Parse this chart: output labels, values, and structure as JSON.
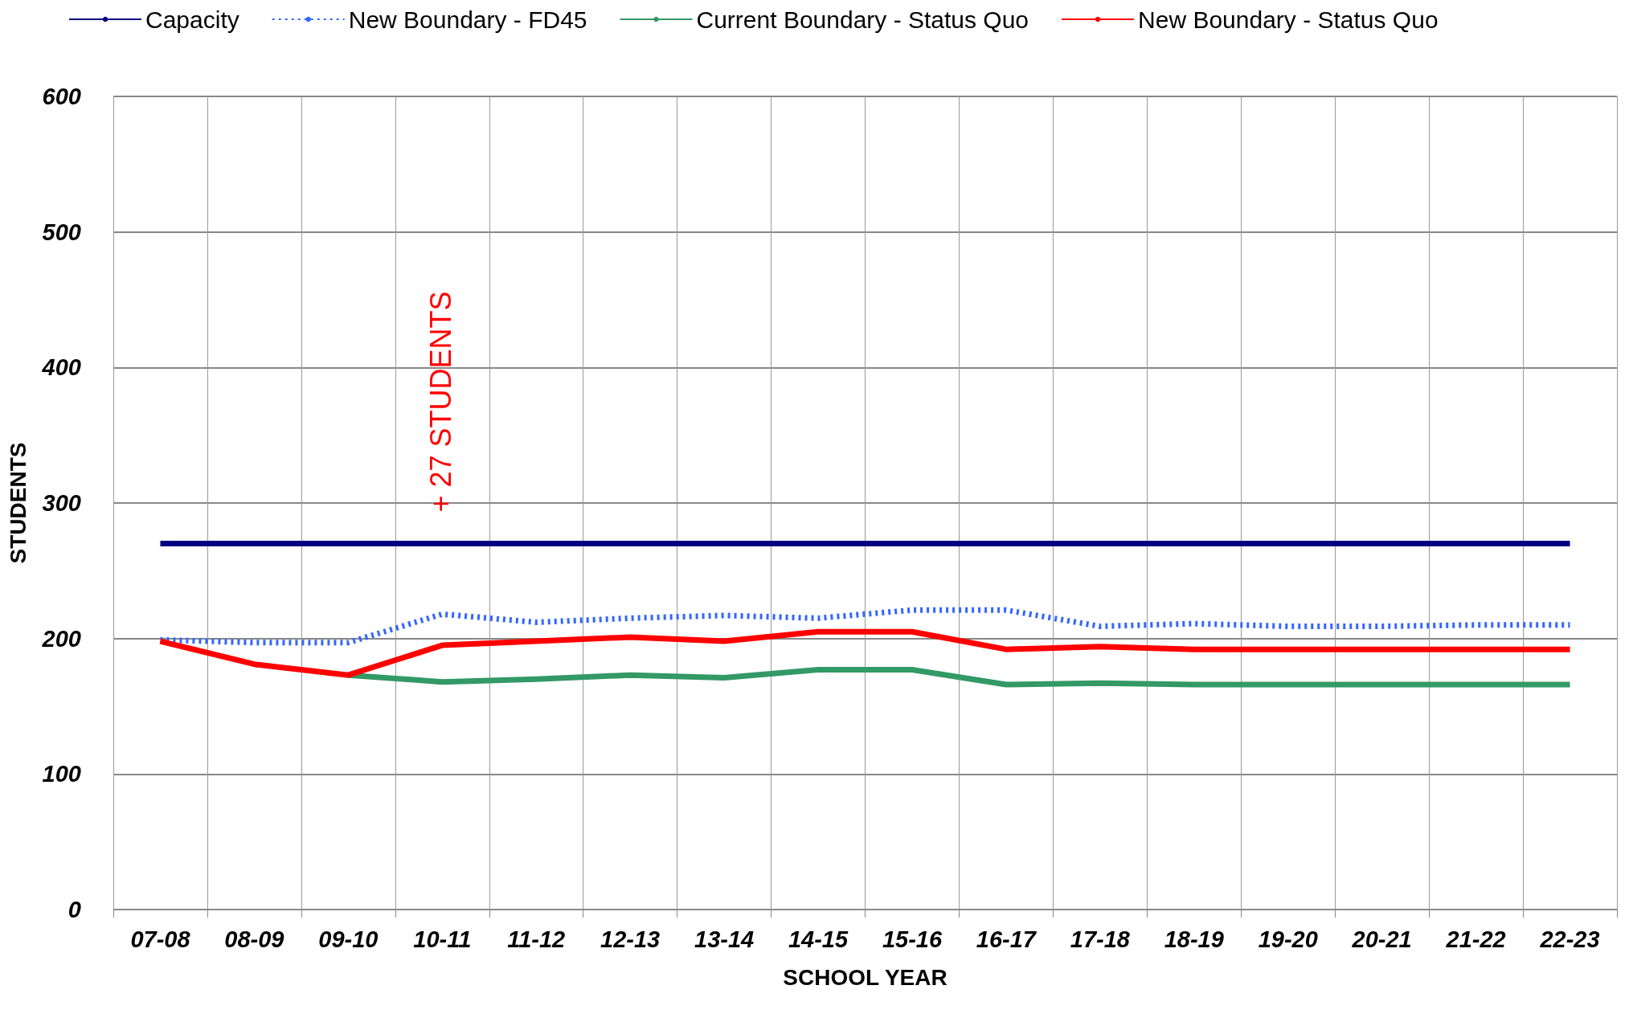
{
  "chart_data": {
    "type": "line",
    "xlabel": "SCHOOL YEAR",
    "ylabel": "STUDENTS",
    "categories": [
      "07-08",
      "08-09",
      "09-10",
      "10-11",
      "11-12",
      "12-13",
      "13-14",
      "14-15",
      "15-16",
      "16-17",
      "17-18",
      "18-19",
      "19-20",
      "20-21",
      "21-22",
      "22-23"
    ],
    "series": [
      {
        "name": "Capacity",
        "color": "#000080",
        "values": [
          270,
          270,
          270,
          270,
          270,
          270,
          270,
          270,
          270,
          270,
          270,
          270,
          270,
          270,
          270,
          270
        ]
      },
      {
        "name": "New Boundary - FD45",
        "color": "#3366ff",
        "line_style": "dashed",
        "values": [
          199,
          197,
          197,
          218,
          212,
          215,
          217,
          215,
          221,
          221,
          209,
          211,
          209,
          209,
          210,
          210
        ]
      },
      {
        "name": "Current Boundary - Status Quo",
        "color": "#339966",
        "values": [
          null,
          null,
          173,
          168,
          170,
          173,
          171,
          177,
          177,
          166,
          167,
          166,
          166,
          166,
          166,
          166
        ]
      },
      {
        "name": "New Boundary - Status Quo",
        "color": "#ff0000",
        "values": [
          198,
          181,
          173,
          195,
          198,
          201,
          198,
          205,
          205,
          192,
          194,
          192,
          192,
          192,
          192,
          192
        ]
      }
    ],
    "ylim": [
      0,
      600
    ],
    "yticks": [
      0,
      100,
      200,
      300,
      400,
      500,
      600
    ],
    "grid": true,
    "legend": "top left",
    "marker": "none",
    "annotations": [
      "+ 27 STUDENTS"
    ]
  }
}
